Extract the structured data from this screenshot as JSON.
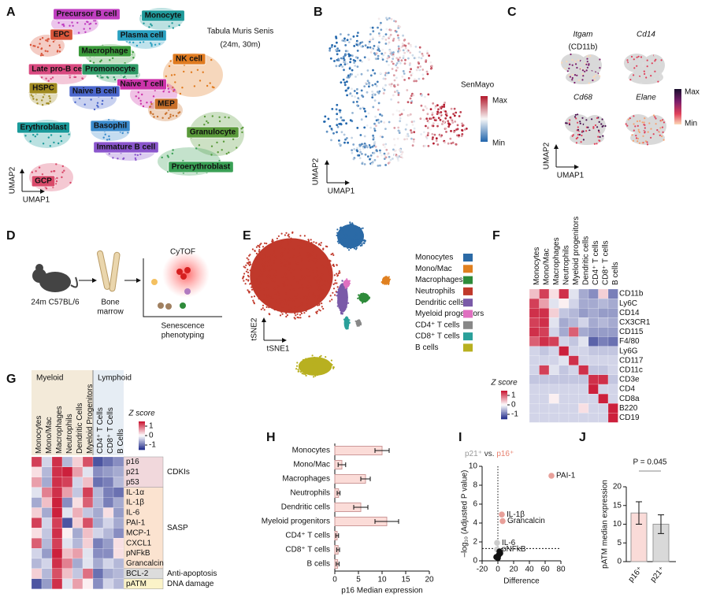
{
  "panel_letters": [
    "A",
    "B",
    "C",
    "D",
    "E",
    "F",
    "G",
    "H",
    "I",
    "J"
  ],
  "umap_atlas": {
    "title": "Tabula Muris Senis",
    "subtitle": "(24m, 30m)",
    "x_label": "UMAP1",
    "y_label": "UMAP2",
    "cell_types": [
      {
        "name": "Precursor B cell",
        "color": "#c03fc0"
      },
      {
        "name": "Monocyte",
        "color": "#1f9a9a"
      },
      {
        "name": "EPC",
        "color": "#d9553a"
      },
      {
        "name": "Plasma cell",
        "color": "#2aa0c0"
      },
      {
        "name": "Macrophage",
        "color": "#3a9a3a"
      },
      {
        "name": "NK cell",
        "color": "#e07b20"
      },
      {
        "name": "Late pro-B cell",
        "color": "#d94a80"
      },
      {
        "name": "Promonocyte",
        "color": "#2f9a66"
      },
      {
        "name": "Naive T cell",
        "color": "#cc33aa"
      },
      {
        "name": "HSPC",
        "color": "#a08a20"
      },
      {
        "name": "Naive B cell",
        "color": "#4a66cc"
      },
      {
        "name": "MEP",
        "color": "#c9702a"
      },
      {
        "name": "Erythroblast",
        "color": "#1a9a9a"
      },
      {
        "name": "Basophil",
        "color": "#3a8acc"
      },
      {
        "name": "Granulocyte",
        "color": "#5a9a3a"
      },
      {
        "name": "Immature B cell",
        "color": "#8a55cc"
      },
      {
        "name": "Proerythroblast",
        "color": "#3aa055"
      },
      {
        "name": "GCP",
        "color": "#d94a6a"
      }
    ]
  },
  "umap_senmayo": {
    "score": "SenMayo",
    "max": "Max",
    "min": "Min",
    "x_label": "UMAP1",
    "y_label": "UMAP2"
  },
  "umap_genes": {
    "genes": [
      "Itgam",
      "Cd14",
      "Cd68",
      "Elane"
    ],
    "alias": "(CD11b)",
    "max": "Max",
    "min": "Min",
    "x_label": "UMAP1",
    "y_label": "UMAP2"
  },
  "schematic": {
    "mouse": "24m C57BL/6",
    "tissue": [
      "Bone",
      "marrow"
    ],
    "method": "CyTOF",
    "readout": [
      "Senescence",
      "phenotyping"
    ]
  },
  "tsne": {
    "x_label": "tSNE1",
    "y_label": "tSNE2",
    "legend": [
      {
        "name": "Monocytes",
        "color": "#2b6aa6"
      },
      {
        "name": "Mono/Mac",
        "color": "#e08020"
      },
      {
        "name": "Macrophages",
        "color": "#2e8b3a"
      },
      {
        "name": "Neutrophils",
        "color": "#c0392b"
      },
      {
        "name": "Dendritic cells",
        "color": "#7a5aa8"
      },
      {
        "name": "Myeloid progenitors",
        "color": "#e070c0"
      },
      {
        "name": "CD4⁺ T cells",
        "color": "#888888"
      },
      {
        "name": "CD8⁺ T cells",
        "color": "#2aa09a"
      },
      {
        "name": "B cells",
        "color": "#b8b020"
      }
    ]
  },
  "chart_data": [
    {
      "type": "heatmap",
      "columns": [
        "Monocytes",
        "Mono/Mac",
        "Macrophages",
        "Neutrophils",
        "Myeloid progenitors",
        "Dendritic cells",
        "CD4⁺ T cells",
        "CD8⁺ T cells",
        "B cells"
      ],
      "rows": [
        {
          "name": "CD11b",
          "values": [
            0.4,
            1.2,
            0.2,
            1.3,
            -0.2,
            -0.6,
            -0.8,
            0.3,
            -0.9
          ]
        },
        {
          "name": "Ly6C",
          "values": [
            1.2,
            0.6,
            -0.2,
            0.1,
            -0.3,
            -0.6,
            -0.6,
            -0.5,
            -0.6
          ]
        },
        {
          "name": "CD14",
          "values": [
            1.3,
            1.3,
            0.3,
            -0.4,
            -0.5,
            -0.7,
            -0.6,
            -0.7,
            -0.7
          ]
        },
        {
          "name": "CX3CR1",
          "values": [
            1.2,
            1.3,
            -0.2,
            -0.6,
            -0.5,
            -0.3,
            -0.6,
            -0.5,
            -0.6
          ]
        },
        {
          "name": "CD115",
          "values": [
            1.3,
            1.2,
            -0.3,
            -0.6,
            1.0,
            -0.6,
            -0.7,
            -0.7,
            -0.7
          ]
        },
        {
          "name": "F4/80",
          "values": [
            1.0,
            1.3,
            1.2,
            -0.3,
            -0.4,
            -0.2,
            -1.1,
            -0.9,
            -1.0
          ]
        },
        {
          "name": "Ly6G",
          "values": [
            -0.3,
            -0.4,
            -0.3,
            1.4,
            -0.3,
            -0.3,
            -0.4,
            -0.4,
            -0.4
          ]
        },
        {
          "name": "CD117",
          "values": [
            -0.3,
            -0.3,
            -0.3,
            -0.2,
            1.3,
            -0.3,
            -0.3,
            -0.3,
            -0.3
          ]
        },
        {
          "name": "CD11c",
          "values": [
            -0.3,
            1.2,
            -0.2,
            -0.4,
            -0.3,
            1.3,
            -0.4,
            -0.4,
            -0.3
          ]
        },
        {
          "name": "CD3e",
          "values": [
            -0.4,
            -0.4,
            -0.4,
            -0.4,
            -0.4,
            -0.4,
            1.3,
            1.3,
            -0.4
          ]
        },
        {
          "name": "CD4",
          "values": [
            -0.3,
            -0.3,
            -0.3,
            -0.3,
            -0.3,
            -0.3,
            1.4,
            -0.3,
            -0.3
          ]
        },
        {
          "name": "CD8a",
          "values": [
            -0.3,
            -0.3,
            0.1,
            -0.3,
            -0.3,
            -0.3,
            -0.3,
            1.4,
            -0.3
          ]
        },
        {
          "name": "B220",
          "values": [
            -0.3,
            -0.3,
            -0.3,
            -0.3,
            -0.3,
            0.2,
            -0.3,
            -0.3,
            1.4
          ]
        },
        {
          "name": "CD19",
          "values": [
            -0.3,
            -0.3,
            -0.3,
            -0.3,
            -0.3,
            -0.3,
            -0.3,
            -0.3,
            1.4
          ]
        }
      ],
      "colorbar_title": "Z score",
      "zlim": [
        -1.5,
        1.5
      ],
      "zticks": [
        1,
        0,
        -1
      ],
      "colors": [
        "#1f2a8a",
        "#ffffff",
        "#c8102e"
      ]
    },
    {
      "type": "heatmap",
      "column_groups": [
        {
          "name": "Myeloid",
          "color": "#f3ead9",
          "columns": [
            "Monocytes",
            "Mono/Mac",
            "Macrophages",
            "Neutrophils",
            "Dendritic Cells",
            "Myeloid Progenitors"
          ]
        },
        {
          "name": "Lymphoid",
          "color": "#e6edf4",
          "columns": [
            "CD4⁺ T Cells",
            "CD8⁺ T Cells",
            "B Cells"
          ]
        }
      ],
      "row_groups": [
        {
          "name": "CDKIs",
          "color": "#f1d8dc",
          "rows": [
            {
              "name": "p16",
              "values": [
                1.2,
                -0.3,
                1.3,
                -0.5,
                0.3,
                1.1,
                -1.2,
                -1.0,
                -0.8
              ]
            },
            {
              "name": "p21",
              "values": [
                0.2,
                -0.5,
                1.3,
                1.4,
                0.6,
                -0.2,
                -0.8,
                -0.7,
                -0.6
              ]
            },
            {
              "name": "p53",
              "values": [
                0.6,
                -0.6,
                1.3,
                1.2,
                -0.3,
                0.4,
                -1.0,
                -0.9,
                -0.5
              ]
            }
          ]
        },
        {
          "name": "SASP",
          "color": "#fbe3d0",
          "rows": [
            {
              "name": "IL-1α",
              "values": [
                -0.2,
                0.8,
                1.3,
                0.6,
                -0.4,
                1.2,
                -0.5,
                -0.9,
                -1.0
              ]
            },
            {
              "name": "IL-1β",
              "values": [
                -0.6,
                0.4,
                1.4,
                -0.8,
                0.2,
                1.0,
                -0.5,
                -0.9,
                -0.6
              ]
            },
            {
              "name": "IL-6",
              "values": [
                0.3,
                -0.6,
                1.4,
                -0.2,
                0.5,
                -0.4,
                -0.6,
                0.2,
                -0.7
              ]
            },
            {
              "name": "PAI-1",
              "values": [
                1.2,
                -0.3,
                1.2,
                -1.2,
                0.3,
                1.1,
                -0.6,
                -0.3,
                -0.6
              ]
            },
            {
              "name": "MCP-1",
              "values": [
                0.2,
                -0.4,
                1.3,
                0.1,
                -0.6,
                0.4,
                -0.3,
                -0.5,
                -0.8
              ]
            },
            {
              "name": "CXCL1",
              "values": [
                1.0,
                -0.5,
                1.2,
                -0.2,
                -0.5,
                0.3,
                -0.9,
                -0.7,
                0.2
              ]
            },
            {
              "name": "pNFkB",
              "values": [
                -0.3,
                -0.7,
                1.4,
                0.4,
                0.6,
                -0.2,
                -0.8,
                -0.8,
                0.2
              ]
            },
            {
              "name": "Grancalcin",
              "values": [
                -0.5,
                -0.3,
                1.3,
                0.8,
                -0.6,
                -0.2,
                -0.6,
                -0.3,
                -0.5
              ]
            }
          ]
        },
        {
          "name": "Anti-apoptosis",
          "color": "#dcdcdc",
          "rows": [
            {
              "name": "BCL-2",
              "values": [
                0.3,
                -0.5,
                1.1,
                0.4,
                -0.4,
                0.9,
                -1.0,
                -0.6,
                -0.5
              ]
            }
          ]
        },
        {
          "name": "DNA damage",
          "color": "#fbf3c8",
          "rows": [
            {
              "name": "pATM",
              "values": [
                -1.2,
                -0.7,
                1.3,
                -0.2,
                0.6,
                0.1,
                -0.8,
                -0.3,
                -0.5
              ]
            }
          ]
        }
      ],
      "colorbar_title": "Z score",
      "zlim": [
        -1.5,
        1.5
      ],
      "zticks": [
        1,
        0,
        -1
      ],
      "colors": [
        "#1f2a8a",
        "#ffffff",
        "#c8102e"
      ]
    },
    {
      "type": "bar",
      "orientation": "horizontal",
      "categories": [
        "Monocytes",
        "Mono/Mac",
        "Macrophages",
        "Neutrophils",
        "Dendritic cells",
        "Myeloid progenitors",
        "CD4⁺ T cells",
        "CD8⁺ T cells",
        "B cells"
      ],
      "values": [
        10,
        1.5,
        6.5,
        0.8,
        5.5,
        11,
        0.5,
        0.7,
        0.6
      ],
      "errors": [
        1.5,
        0.8,
        1,
        0.3,
        1.5,
        2.5,
        0.3,
        0.3,
        0.3
      ],
      "color": "#fbdcd8",
      "xlim": [
        0,
        20
      ],
      "xticks": [
        0,
        5,
        10,
        15,
        20
      ],
      "x_label": "p16 Median expression"
    },
    {
      "type": "scatter",
      "title_parts": [
        {
          "text": "p21⁺",
          "color": "#999999"
        },
        {
          "text": "vs.",
          "color": "#333333"
        },
        {
          "text": "p16⁺",
          "color": "#e8806e"
        }
      ],
      "x": [
        68,
        5,
        6,
        -1,
        -1,
        1,
        -2,
        3,
        0,
        2
      ],
      "y": [
        9,
        4.9,
        4.2,
        1.9,
        1.2,
        0.6,
        0.4,
        0.8,
        0.3,
        1.0
      ],
      "labels": [
        "PAI-1",
        "IL-1β",
        "Grancalcin",
        "IL-6",
        "pNFkB",
        null,
        null,
        null,
        null,
        null
      ],
      "colors": [
        "#e8a09a",
        "#e8a09a",
        "#e8a09a",
        "#cccccc",
        "#cccccc",
        "#111111",
        "#111111",
        "#111111",
        "#111111",
        "#111111"
      ],
      "threshold": 1.3,
      "xlim": [
        -20,
        80
      ],
      "xticks": [
        -20,
        0,
        20,
        40,
        60,
        80
      ],
      "ylim": [
        0,
        10
      ],
      "yticks": [
        0,
        2,
        4,
        6,
        8,
        10
      ],
      "x_label": "Difference",
      "y_label": "–log₁₀ (Adjusted P value)"
    },
    {
      "type": "bar",
      "categories": [
        "p16⁺",
        "p21⁺"
      ],
      "values": [
        13,
        10
      ],
      "errors": [
        3,
        2.5
      ],
      "colors": [
        "#fadbd8",
        "#d9d9d9"
      ],
      "ylim": [
        0,
        20
      ],
      "yticks": [
        0,
        5,
        10,
        15,
        20
      ],
      "y_label": "pATM median expression",
      "annotation": "P = 0.045"
    }
  ]
}
